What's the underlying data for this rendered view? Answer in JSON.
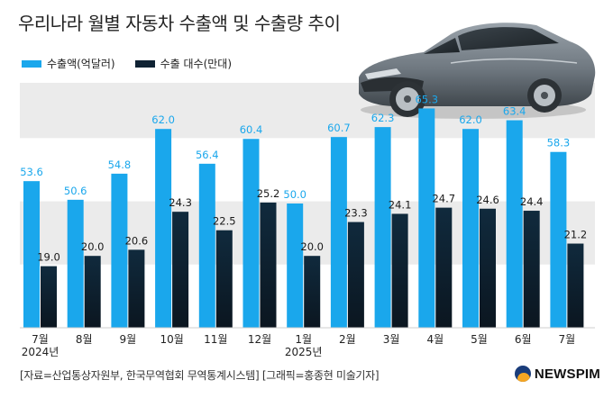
{
  "title": "우리나라 월별 자동차 수출액 및 수출량 추이",
  "source": "[자료=산업통상자원부, 한국무역협회 무역통계시스템] [그래픽=홍종현 미술기자]",
  "logo": "NEWSPIM",
  "colors": {
    "export_value": "#1aa7ec",
    "export_units": "#0f2233",
    "band": "#ebebeb"
  },
  "chart_data": {
    "type": "bar",
    "title": "우리나라 월별 자동차 수출액 및 수출량 추이",
    "categories": [
      "7월",
      "8월",
      "9월",
      "10월",
      "11월",
      "12월",
      "1월",
      "2월",
      "3월",
      "4월",
      "5월",
      "6월",
      "7월"
    ],
    "year_labels": [
      "2024년",
      "",
      "",
      "",
      "",
      "",
      "2025년",
      "",
      "",
      "",
      "",
      "",
      ""
    ],
    "series": [
      {
        "name": "수출액(억달러)",
        "values": [
          53.6,
          50.6,
          54.8,
          62.0,
          56.4,
          60.4,
          50.0,
          60.7,
          62.3,
          65.3,
          62.0,
          63.4,
          58.3
        ]
      },
      {
        "name": "수출 대수(만대)",
        "values": [
          19.0,
          20.0,
          20.6,
          24.3,
          22.5,
          25.2,
          20.0,
          23.3,
          24.1,
          24.7,
          24.6,
          24.4,
          21.2
        ]
      }
    ],
    "value_labels": [
      [
        "53.6",
        "50.6",
        "54.8",
        "62.0",
        "56.4",
        "60.4",
        "50.0",
        "60.7",
        "62.3",
        "65.3",
        "62.0",
        "63.4",
        "58.3"
      ],
      [
        "19.0",
        "20.0",
        "20.6",
        "24.3",
        "22.5",
        "25.2",
        "20.0",
        "23.3",
        "24.1",
        "24.7",
        "24.6",
        "24.4",
        "21.2"
      ]
    ],
    "legend_position": "top-left",
    "grid": false
  }
}
